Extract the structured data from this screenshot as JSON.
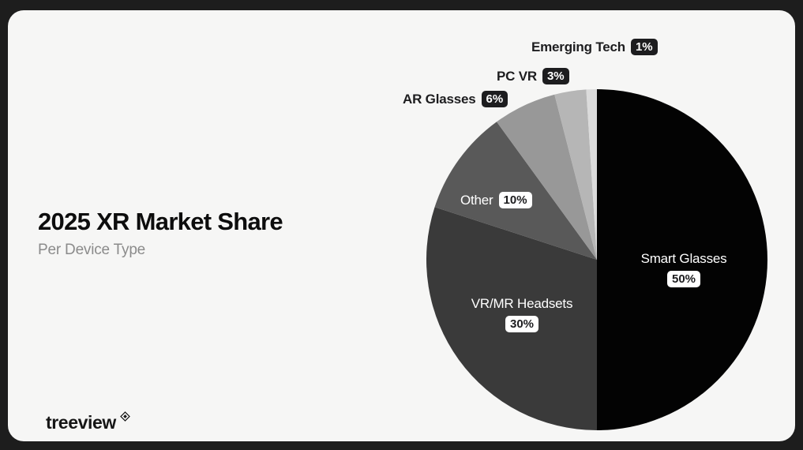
{
  "frame": {
    "outer_background": "#1d1d1d",
    "panel_background": "#f6f6f5"
  },
  "header": {
    "title": "2025 XR Market Share",
    "subtitle": "Per Device Type"
  },
  "footer": {
    "brand": "treeview",
    "brand_icon": "diamond-icon"
  },
  "chart_data": {
    "type": "pie",
    "title": "2025 XR Market Share",
    "subtitle": "Per Device Type",
    "direction": "clockwise",
    "start_angle_deg": 0,
    "legend_position": "labels-on-chart",
    "slices": [
      {
        "label": "Smart Glasses",
        "value": 50,
        "percent_label": "50%",
        "color": "#030303",
        "label_placement": "inside"
      },
      {
        "label": "VR/MR Headsets",
        "value": 30,
        "percent_label": "30%",
        "color": "#3a3a3a",
        "label_placement": "inside"
      },
      {
        "label": "Other",
        "value": 10,
        "percent_label": "10%",
        "color": "#595959",
        "label_placement": "inside"
      },
      {
        "label": "AR Glasses",
        "value": 6,
        "percent_label": "6%",
        "color": "#989898",
        "label_placement": "outside"
      },
      {
        "label": "PC VR",
        "value": 3,
        "percent_label": "3%",
        "color": "#b6b6b6",
        "label_placement": "outside"
      },
      {
        "label": "Emerging Tech",
        "value": 1,
        "percent_label": "1%",
        "color": "#dbdbdb",
        "label_placement": "outside"
      }
    ]
  }
}
